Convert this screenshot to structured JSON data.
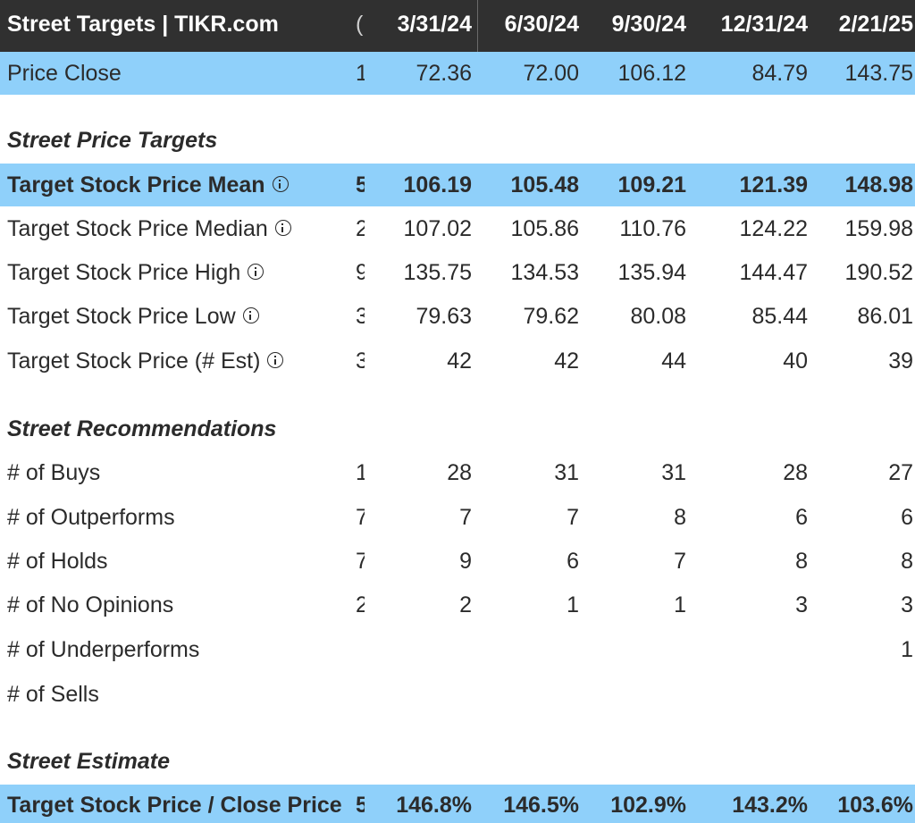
{
  "header": {
    "title": "Street Targets | TIKR.com",
    "cut": "(",
    "dates": [
      "3/31/24",
      "6/30/24",
      "9/30/24",
      "12/31/24",
      "2/21/25"
    ]
  },
  "price_close": {
    "label": "Price Close",
    "cut": "1",
    "values": [
      "72.36",
      "72.00",
      "106.12",
      "84.79",
      "143.75"
    ]
  },
  "sections": {
    "targets": "Street Price Targets",
    "recommendations": "Street Recommendations",
    "estimate": "Street Estimate"
  },
  "targets": [
    {
      "label": "Target Stock Price Mean",
      "cut": "5",
      "values": [
        "106.19",
        "105.48",
        "109.21",
        "121.39",
        "148.98"
      ]
    },
    {
      "label": "Target Stock Price Median",
      "cut": "2",
      "values": [
        "107.02",
        "105.86",
        "110.76",
        "124.22",
        "159.98"
      ]
    },
    {
      "label": "Target Stock Price High",
      "cut": "9",
      "values": [
        "135.75",
        "134.53",
        "135.94",
        "144.47",
        "190.52"
      ]
    },
    {
      "label": "Target Stock Price Low",
      "cut": "3",
      "values": [
        "79.63",
        "79.62",
        "80.08",
        "85.44",
        "86.01"
      ]
    },
    {
      "label": "Target Stock Price (# Est)",
      "cut": "3",
      "values": [
        "42",
        "42",
        "44",
        "40",
        "39"
      ]
    }
  ],
  "recommendations": [
    {
      "label": "# of Buys",
      "cut": "1",
      "values": [
        "28",
        "31",
        "31",
        "28",
        "27"
      ]
    },
    {
      "label": "# of Outperforms",
      "cut": "7",
      "values": [
        "7",
        "7",
        "8",
        "6",
        "6"
      ]
    },
    {
      "label": "# of Holds",
      "cut": "7",
      "values": [
        "9",
        "6",
        "7",
        "8",
        "8"
      ]
    },
    {
      "label": "# of No Opinions",
      "cut": "2",
      "values": [
        "2",
        "1",
        "1",
        "3",
        "3"
      ]
    },
    {
      "label": "# of Underperforms",
      "cut": "",
      "values": [
        "",
        "",
        "",
        "",
        "1"
      ]
    },
    {
      "label": "# of Sells",
      "cut": "",
      "values": [
        "",
        "",
        "",
        "",
        ""
      ]
    }
  ],
  "estimate": [
    {
      "label": "Target Stock Price / Close Price",
      "cut": "5",
      "values": [
        "146.8%",
        "146.5%",
        "102.9%",
        "143.2%",
        "103.6%"
      ]
    }
  ],
  "colors": {
    "header_bg": "#303030",
    "highlight_blue": "#8fd0fa",
    "text": "#2b2b2b"
  },
  "icons": {
    "info": "info-circle-icon"
  }
}
